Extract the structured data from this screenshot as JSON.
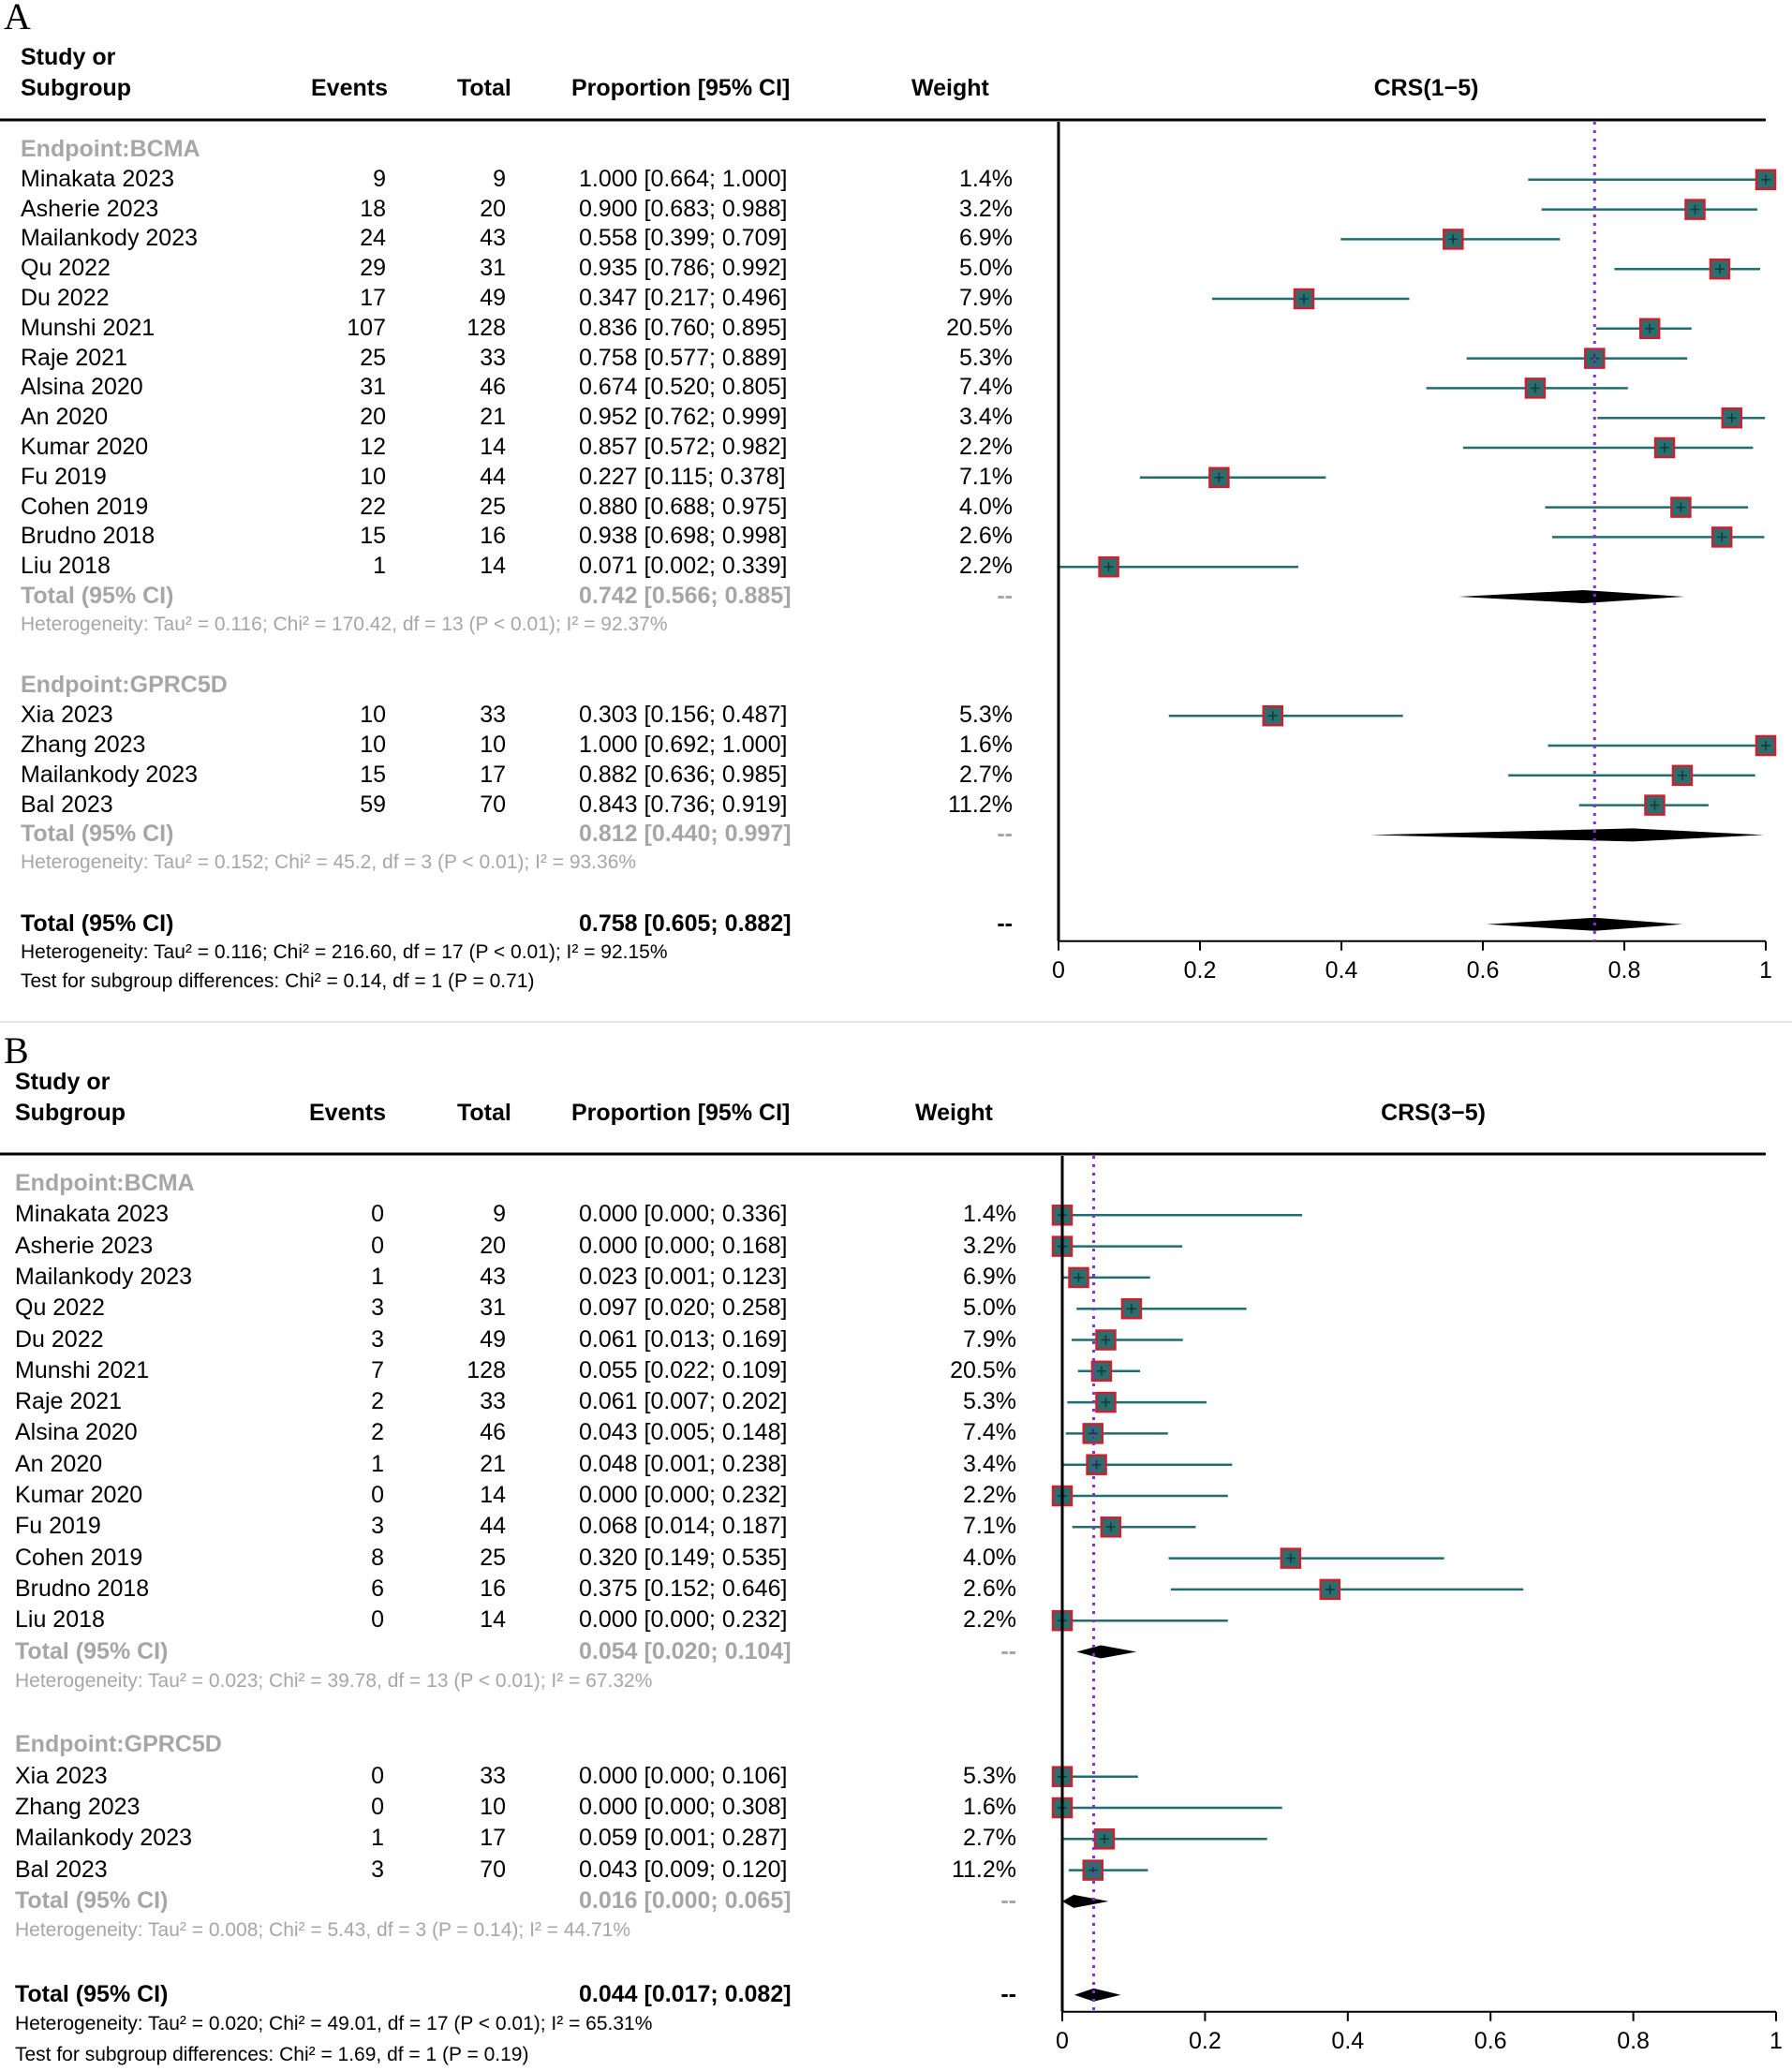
{
  "colors": {
    "ci_line": "#1f6f6f",
    "box_fill": "#2c6e6e",
    "box_border": "#cc2030",
    "mean_line": "#8a2be2",
    "gray_text": "#a6a6a6"
  },
  "headers": {
    "study_line1": "Study or",
    "study_line2": "Subgroup",
    "events": "Events",
    "total": "Total",
    "proportion": "Proportion [95% CI]",
    "weight": "Weight"
  },
  "panels": [
    {
      "label": "A",
      "plot_title": "CRS(1−5)",
      "groups": [
        {
          "title": "Endpoint:BCMA",
          "rows": [
            {
              "study": "Minakata  2023",
              "events": "9",
              "total": "9",
              "ci": "1.000 [0.664; 1.000]",
              "weight": "1.4%",
              "est": 1.0,
              "lo": 0.664,
              "hi": 1.0,
              "w": 1.4
            },
            {
              "study": "Asherie 2023",
              "events": "18",
              "total": "20",
              "ci": "0.900 [0.683; 0.988]",
              "weight": "3.2%",
              "est": 0.9,
              "lo": 0.683,
              "hi": 0.988,
              "w": 3.2
            },
            {
              "study": "Mailankody  2023",
              "events": "24",
              "total": "43",
              "ci": "0.558 [0.399; 0.709]",
              "weight": "6.9%",
              "est": 0.558,
              "lo": 0.399,
              "hi": 0.709,
              "w": 6.9
            },
            {
              "study": "Qu 2022",
              "events": "29",
              "total": "31",
              "ci": "0.935 [0.786; 0.992]",
              "weight": "5.0%",
              "est": 0.935,
              "lo": 0.786,
              "hi": 0.992,
              "w": 5.0
            },
            {
              "study": "Du 2022",
              "events": "17",
              "total": "49",
              "ci": "0.347 [0.217; 0.496]",
              "weight": "7.9%",
              "est": 0.347,
              "lo": 0.217,
              "hi": 0.496,
              "w": 7.9
            },
            {
              "study": "Munshi 2021",
              "events": "107",
              "total": "128",
              "ci": "0.836 [0.760; 0.895]",
              "weight": "20.5%",
              "est": 0.836,
              "lo": 0.76,
              "hi": 0.895,
              "w": 20.5
            },
            {
              "study": "Raje 2021",
              "events": "25",
              "total": "33",
              "ci": "0.758 [0.577; 0.889]",
              "weight": "5.3%",
              "est": 0.758,
              "lo": 0.577,
              "hi": 0.889,
              "w": 5.3
            },
            {
              "study": "Alsina 2020",
              "events": "31",
              "total": "46",
              "ci": "0.674 [0.520; 0.805]",
              "weight": "7.4%",
              "est": 0.674,
              "lo": 0.52,
              "hi": 0.805,
              "w": 7.4
            },
            {
              "study": "An 2020",
              "events": "20",
              "total": "21",
              "ci": "0.952 [0.762; 0.999]",
              "weight": "3.4%",
              "est": 0.952,
              "lo": 0.762,
              "hi": 0.999,
              "w": 3.4
            },
            {
              "study": "Kumar 2020",
              "events": "12",
              "total": "14",
              "ci": "0.857 [0.572; 0.982]",
              "weight": "2.2%",
              "est": 0.857,
              "lo": 0.572,
              "hi": 0.982,
              "w": 2.2
            },
            {
              "study": "Fu 2019",
              "events": "10",
              "total": "44",
              "ci": "0.227 [0.115; 0.378]",
              "weight": "7.1%",
              "est": 0.227,
              "lo": 0.115,
              "hi": 0.378,
              "w": 7.1
            },
            {
              "study": "Cohen 2019",
              "events": "22",
              "total": "25",
              "ci": "0.880 [0.688; 0.975]",
              "weight": "4.0%",
              "est": 0.88,
              "lo": 0.688,
              "hi": 0.975,
              "w": 4.0
            },
            {
              "study": "Brudno 2018",
              "events": "15",
              "total": "16",
              "ci": "0.938 [0.698; 0.998]",
              "weight": "2.6%",
              "est": 0.938,
              "lo": 0.698,
              "hi": 0.998,
              "w": 2.6
            },
            {
              "study": "Liu 2018",
              "events": "1",
              "total": "14",
              "ci": "0.071 [0.002; 0.339]",
              "weight": "2.2%",
              "est": 0.071,
              "lo": 0.002,
              "hi": 0.339,
              "w": 2.2
            }
          ],
          "total": {
            "label": "Total (95% CI)",
            "ci": "0.742 [0.566; 0.885]",
            "weight": "--",
            "est": 0.742,
            "lo": 0.566,
            "hi": 0.885
          },
          "heterogeneity": "Heterogeneity: Tau² = 0.116; Chi² = 170.42, df = 13 (P < 0.01); I² = 92.37%"
        },
        {
          "title": "Endpoint:GPRC5D",
          "rows": [
            {
              "study": "Xia 2023",
              "events": "10",
              "total": "33",
              "ci": "0.303 [0.156; 0.487]",
              "weight": "5.3%",
              "est": 0.303,
              "lo": 0.156,
              "hi": 0.487,
              "w": 5.3
            },
            {
              "study": "Zhang 2023",
              "events": "10",
              "total": "10",
              "ci": "1.000 [0.692; 1.000]",
              "weight": "1.6%",
              "est": 1.0,
              "lo": 0.692,
              "hi": 1.0,
              "w": 1.6
            },
            {
              "study": "Mailankody  2023",
              "events": "15",
              "total": "17",
              "ci": "0.882 [0.636; 0.985]",
              "weight": "2.7%",
              "est": 0.882,
              "lo": 0.636,
              "hi": 0.985,
              "w": 2.7
            },
            {
              "study": "Bal 2023",
              "events": "59",
              "total": "70",
              "ci": "0.843 [0.736; 0.919]",
              "weight": "11.2%",
              "est": 0.843,
              "lo": 0.736,
              "hi": 0.919,
              "w": 11.2
            }
          ],
          "total": {
            "label": "Total (95% CI)",
            "ci": "0.812 [0.440; 0.997]",
            "weight": "--",
            "est": 0.812,
            "lo": 0.44,
            "hi": 0.997
          },
          "heterogeneity": "Heterogeneity: Tau² = 0.152; Chi² = 45.2, df = 3 (P < 0.01); I² = 93.36%"
        }
      ],
      "overall": {
        "label": "Total (95% CI)",
        "ci": "0.758 [0.605; 0.882]",
        "weight": "--",
        "est": 0.758,
        "lo": 0.605,
        "hi": 0.882
      },
      "overall_heterogeneity": "Heterogeneity: Tau² = 0.116; Chi² = 216.60, df = 17 (P < 0.01); I² = 92.15%",
      "subgroup_test": "Test for subgroup differences: Chi² = 0.14, df = 1 (P = 0.71)",
      "axis": {
        "min": 0,
        "max": 1,
        "ticks": [
          "0",
          "0.2",
          "0.4",
          "0.6",
          "0.8",
          "1"
        ]
      }
    },
    {
      "label": "B",
      "plot_title": "CRS(3−5)",
      "groups": [
        {
          "title": "Endpoint:BCMA",
          "rows": [
            {
              "study": "Minakata  2023",
              "events": "0",
              "total": "9",
              "ci": "0.000 [0.000; 0.336]",
              "weight": "1.4%",
              "est": 0.0,
              "lo": 0.0,
              "hi": 0.336,
              "w": 1.4
            },
            {
              "study": "Asherie 2023",
              "events": "0",
              "total": "20",
              "ci": "0.000 [0.000; 0.168]",
              "weight": "3.2%",
              "est": 0.0,
              "lo": 0.0,
              "hi": 0.168,
              "w": 3.2
            },
            {
              "study": "Mailankody  2023",
              "events": "1",
              "total": "43",
              "ci": "0.023 [0.001; 0.123]",
              "weight": "6.9%",
              "est": 0.023,
              "lo": 0.001,
              "hi": 0.123,
              "w": 6.9
            },
            {
              "study": "Qu 2022",
              "events": "3",
              "total": "31",
              "ci": "0.097 [0.020; 0.258]",
              "weight": "5.0%",
              "est": 0.097,
              "lo": 0.02,
              "hi": 0.258,
              "w": 5.0
            },
            {
              "study": "Du 2022",
              "events": "3",
              "total": "49",
              "ci": "0.061 [0.013; 0.169]",
              "weight": "7.9%",
              "est": 0.061,
              "lo": 0.013,
              "hi": 0.169,
              "w": 7.9
            },
            {
              "study": "Munshi 2021",
              "events": "7",
              "total": "128",
              "ci": "0.055 [0.022; 0.109]",
              "weight": "20.5%",
              "est": 0.055,
              "lo": 0.022,
              "hi": 0.109,
              "w": 20.5
            },
            {
              "study": "Raje 2021",
              "events": "2",
              "total": "33",
              "ci": "0.061 [0.007; 0.202]",
              "weight": "5.3%",
              "est": 0.061,
              "lo": 0.007,
              "hi": 0.202,
              "w": 5.3
            },
            {
              "study": "Alsina 2020",
              "events": "2",
              "total": "46",
              "ci": "0.043 [0.005; 0.148]",
              "weight": "7.4%",
              "est": 0.043,
              "lo": 0.005,
              "hi": 0.148,
              "w": 7.4
            },
            {
              "study": "An 2020",
              "events": "1",
              "total": "21",
              "ci": "0.048 [0.001; 0.238]",
              "weight": "3.4%",
              "est": 0.048,
              "lo": 0.001,
              "hi": 0.238,
              "w": 3.4
            },
            {
              "study": "Kumar 2020",
              "events": "0",
              "total": "14",
              "ci": "0.000 [0.000; 0.232]",
              "weight": "2.2%",
              "est": 0.0,
              "lo": 0.0,
              "hi": 0.232,
              "w": 2.2
            },
            {
              "study": "Fu 2019",
              "events": "3",
              "total": "44",
              "ci": "0.068 [0.014; 0.187]",
              "weight": "7.1%",
              "est": 0.068,
              "lo": 0.014,
              "hi": 0.187,
              "w": 7.1
            },
            {
              "study": "Cohen 2019",
              "events": "8",
              "total": "25",
              "ci": "0.320 [0.149; 0.535]",
              "weight": "4.0%",
              "est": 0.32,
              "lo": 0.149,
              "hi": 0.535,
              "w": 4.0
            },
            {
              "study": "Brudno 2018",
              "events": "6",
              "total": "16",
              "ci": "0.375 [0.152; 0.646]",
              "weight": "2.6%",
              "est": 0.375,
              "lo": 0.152,
              "hi": 0.646,
              "w": 2.6
            },
            {
              "study": "Liu 2018",
              "events": "0",
              "total": "14",
              "ci": "0.000 [0.000; 0.232]",
              "weight": "2.2%",
              "est": 0.0,
              "lo": 0.0,
              "hi": 0.232,
              "w": 2.2
            }
          ],
          "total": {
            "label": "Total (95% CI)",
            "ci": "0.054 [0.020; 0.104]",
            "weight": "--",
            "est": 0.054,
            "lo": 0.02,
            "hi": 0.104
          },
          "heterogeneity": "Heterogeneity: Tau² = 0.023; Chi² = 39.78, df = 13 (P < 0.01); I² = 67.32%"
        },
        {
          "title": "Endpoint:GPRC5D",
          "rows": [
            {
              "study": "Xia 2023",
              "events": "0",
              "total": "33",
              "ci": "0.000 [0.000; 0.106]",
              "weight": "5.3%",
              "est": 0.0,
              "lo": 0.0,
              "hi": 0.106,
              "w": 5.3
            },
            {
              "study": "Zhang 2023",
              "events": "0",
              "total": "10",
              "ci": "0.000 [0.000; 0.308]",
              "weight": "1.6%",
              "est": 0.0,
              "lo": 0.0,
              "hi": 0.308,
              "w": 1.6
            },
            {
              "study": "Mailankody  2023",
              "events": "1",
              "total": "17",
              "ci": "0.059 [0.001; 0.287]",
              "weight": "2.7%",
              "est": 0.059,
              "lo": 0.001,
              "hi": 0.287,
              "w": 2.7
            },
            {
              "study": "Bal 2023",
              "events": "3",
              "total": "70",
              "ci": "0.043 [0.009; 0.120]",
              "weight": "11.2%",
              "est": 0.043,
              "lo": 0.009,
              "hi": 0.12,
              "w": 11.2
            }
          ],
          "total": {
            "label": "Total (95% CI)",
            "ci": "0.016 [0.000; 0.065]",
            "weight": "--",
            "est": 0.016,
            "lo": 0.0,
            "hi": 0.065
          },
          "heterogeneity": "Heterogeneity: Tau² = 0.008; Chi² = 5.43, df = 3 (P = 0.14); I² = 44.71%"
        }
      ],
      "overall": {
        "label": "Total (95% CI)",
        "ci": "0.044 [0.017; 0.082]",
        "weight": "--",
        "est": 0.044,
        "lo": 0.017,
        "hi": 0.082
      },
      "overall_heterogeneity": "Heterogeneity: Tau² = 0.020; Chi² = 49.01, df = 17 (P < 0.01); I² = 65.31%",
      "subgroup_test": "Test for subgroup differences: Chi² = 1.69, df = 1 (P = 0.19)",
      "axis": {
        "min": 0,
        "max": 1,
        "ticks": [
          "0",
          "0.2",
          "0.4",
          "0.6",
          "0.8",
          "1"
        ]
      }
    }
  ],
  "chart_data": [
    {
      "type": "forest",
      "title": "CRS(1−5)",
      "x": [
        "Minakata  2023",
        "Asherie 2023",
        "Mailankody  2023",
        "Qu 2022",
        "Du 2022",
        "Munshi 2021",
        "Raje 2021",
        "Alsina 2020",
        "An 2020",
        "Kumar 2020",
        "Fu 2019",
        "Cohen 2019",
        "Brudno 2018",
        "Liu 2018",
        "Xia 2023",
        "Zhang 2023",
        "Mailankody  2023",
        "Bal 2023"
      ],
      "series": [
        {
          "name": "proportion",
          "values": [
            1.0,
            0.9,
            0.558,
            0.935,
            0.347,
            0.836,
            0.758,
            0.674,
            0.952,
            0.857,
            0.227,
            0.88,
            0.938,
            0.071,
            0.303,
            1.0,
            0.882,
            0.843
          ]
        },
        {
          "name": "ci_lower",
          "values": [
            0.664,
            0.683,
            0.399,
            0.786,
            0.217,
            0.76,
            0.577,
            0.52,
            0.762,
            0.572,
            0.115,
            0.688,
            0.698,
            0.002,
            0.156,
            0.692,
            0.636,
            0.736
          ]
        },
        {
          "name": "ci_upper",
          "values": [
            1.0,
            0.988,
            0.709,
            0.992,
            0.496,
            0.895,
            0.889,
            0.805,
            0.999,
            0.982,
            0.378,
            0.975,
            0.998,
            0.339,
            0.487,
            1.0,
            0.985,
            0.919
          ]
        }
      ],
      "xlim": [
        0,
        1
      ],
      "pooled": 0.758
    },
    {
      "type": "forest",
      "title": "CRS(3−5)",
      "x": [
        "Minakata  2023",
        "Asherie 2023",
        "Mailankody  2023",
        "Qu 2022",
        "Du 2022",
        "Munshi 2021",
        "Raje 2021",
        "Alsina 2020",
        "An 2020",
        "Kumar 2020",
        "Fu 2019",
        "Cohen 2019",
        "Brudno 2018",
        "Liu 2018",
        "Xia 2023",
        "Zhang 2023",
        "Mailankody  2023",
        "Bal 2023"
      ],
      "series": [
        {
          "name": "proportion",
          "values": [
            0.0,
            0.0,
            0.023,
            0.097,
            0.061,
            0.055,
            0.061,
            0.043,
            0.048,
            0.0,
            0.068,
            0.32,
            0.375,
            0.0,
            0.0,
            0.0,
            0.059,
            0.043
          ]
        },
        {
          "name": "ci_lower",
          "values": [
            0.0,
            0.0,
            0.001,
            0.02,
            0.013,
            0.022,
            0.007,
            0.005,
            0.001,
            0.0,
            0.014,
            0.149,
            0.152,
            0.0,
            0.0,
            0.0,
            0.001,
            0.009
          ]
        },
        {
          "name": "ci_upper",
          "values": [
            0.336,
            0.168,
            0.123,
            0.258,
            0.169,
            0.109,
            0.202,
            0.148,
            0.238,
            0.232,
            0.187,
            0.535,
            0.646,
            0.232,
            0.106,
            0.308,
            0.287,
            0.12
          ]
        }
      ],
      "xlim": [
        0,
        1
      ],
      "pooled": 0.044
    }
  ]
}
